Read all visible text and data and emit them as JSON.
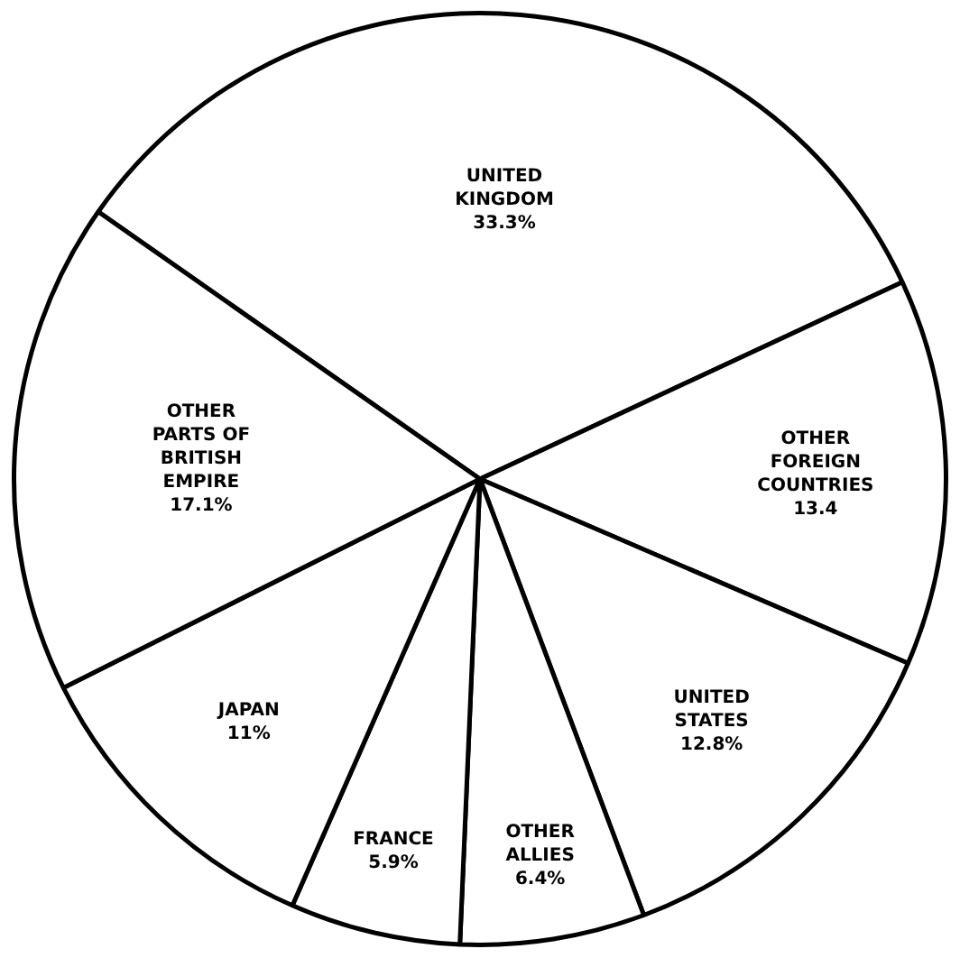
{
  "chart_data": {
    "type": "pie",
    "categories": [
      "UNITED KINGDOM",
      "OTHER FOREIGN COUNTRIES",
      "UNITED STATES",
      "OTHER ALLIES",
      "FRANCE",
      "JAPAN",
      "OTHER PARTS OF BRITISH EMPIRE"
    ],
    "values": [
      33.3,
      13.4,
      12.8,
      6.4,
      5.9,
      11,
      17.1
    ],
    "value_labels": [
      "33.3%",
      "13.4",
      "12.8%",
      "6.4%",
      "5.9%",
      "11%",
      "17.1%"
    ],
    "colors": [
      "#ffffff",
      "#ffffff",
      "#ffffff",
      "#ffffff",
      "#ffffff",
      "#ffffff",
      "#ffffff"
    ],
    "legend": false
  }
}
